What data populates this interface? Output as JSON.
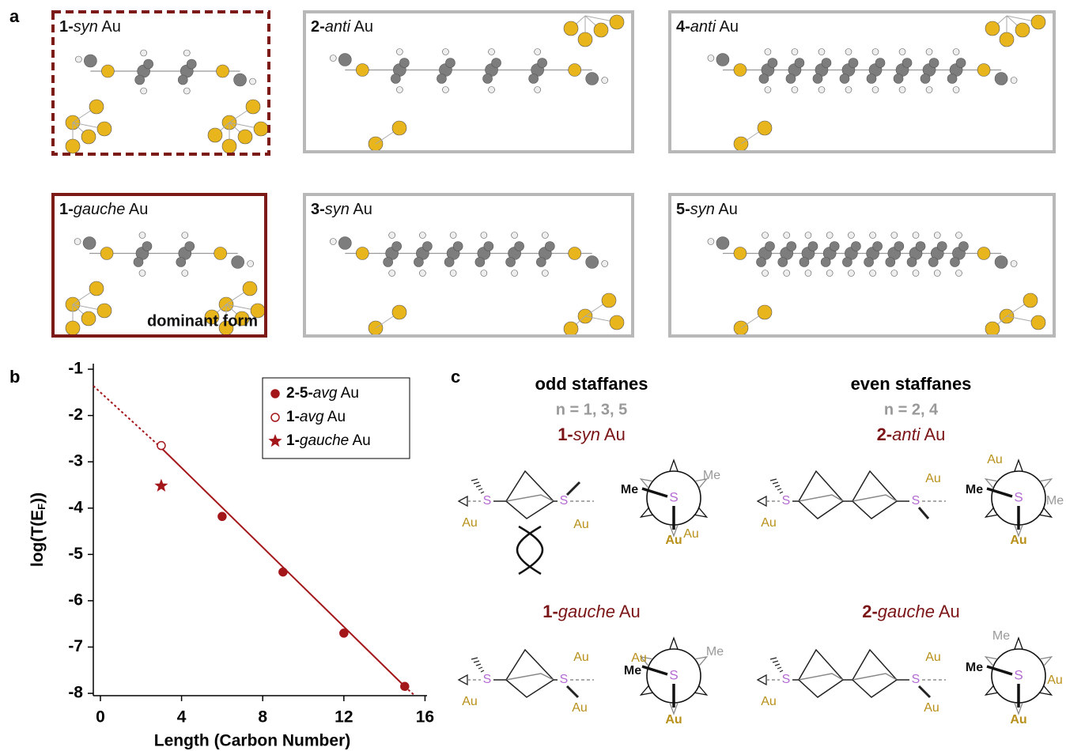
{
  "panel_a": {
    "label": "a",
    "boxes": [
      {
        "label": "1-syn Au",
        "style": "dashed",
        "color": "#7b1a17"
      },
      {
        "label": "2-anti Au",
        "style": "solid",
        "color": "#b8b8b8"
      },
      {
        "label": "4-anti Au",
        "style": "solid",
        "color": "#b8b8b8"
      },
      {
        "label": "1-gauche Au",
        "style": "solid",
        "color": "#7b1a17",
        "note": "dominant form"
      },
      {
        "label": "3-syn Au",
        "style": "solid",
        "color": "#b8b8b8"
      },
      {
        "label": "5-syn Au",
        "style": "solid",
        "color": "#b8b8b8"
      }
    ]
  },
  "chart_data": {
    "type": "scatter",
    "panel_label": "b",
    "xlabel": "Length (Carbon Number)",
    "ylabel": [
      "log(T(E",
      "F",
      "))"
    ],
    "xlim": [
      -0.35,
      16.1
    ],
    "ylim": [
      -8.05,
      -0.88
    ],
    "xticks": [
      0,
      4,
      8,
      12,
      16
    ],
    "yticks": [
      -1,
      -2,
      -3,
      -4,
      -5,
      -6,
      -7,
      -8
    ],
    "series": [
      {
        "name": "2-5-avg Au",
        "color": "#a3171b",
        "marker": "filled-circle",
        "x": [
          6,
          9,
          12,
          15
        ],
        "values": [
          -4.18,
          -5.38,
          -6.7,
          -7.85
        ]
      },
      {
        "name": "1-avg Au",
        "color": "#a3171b",
        "marker": "open-circle",
        "x": [
          3
        ],
        "values": [
          -2.65
        ]
      },
      {
        "name": "1-gauche Au",
        "color": "#a3171b",
        "marker": "star",
        "x": [
          3
        ],
        "values": [
          -3.52
        ]
      }
    ],
    "fit": {
      "color": "#a3171b",
      "x": [
        -0.35,
        3,
        15,
        15.5
      ],
      "values": [
        -1.36,
        -2.7,
        -7.85,
        -8.05
      ],
      "dashed": [
        true,
        false,
        true
      ]
    },
    "legend": "upper-right"
  },
  "panel_c": {
    "label": "c",
    "columns": [
      {
        "heading": "odd staffanes",
        "n": "n = 1, 3, 5",
        "schemes": [
          "1-syn Au",
          "1-gauche Au"
        ]
      },
      {
        "heading": "even staffanes",
        "n": "n = 2, 4",
        "schemes": [
          "2-anti Au",
          "2-gauche Au"
        ]
      }
    ],
    "atoms": {
      "sulfur": "S",
      "gold": "Au",
      "methyl": "Me"
    }
  }
}
